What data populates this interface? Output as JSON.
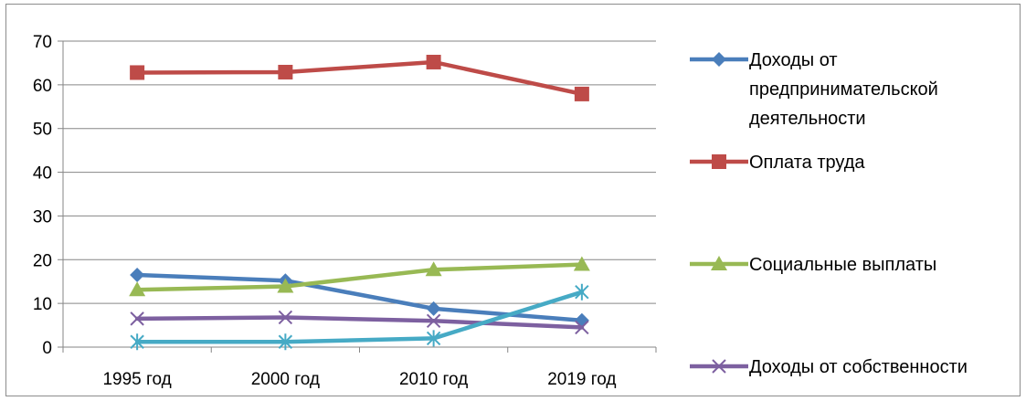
{
  "chart_data": {
    "type": "line",
    "categories": [
      "1995 год",
      "2000 год",
      "2010 год",
      "2019 год"
    ],
    "ylim": [
      0,
      70
    ],
    "yticks": [
      "0",
      "10",
      "20",
      "30",
      "40",
      "50",
      "60",
      "70"
    ],
    "grid": true,
    "legend_position": "right",
    "series": [
      {
        "name": "Доходы от предпринимательской деятельности",
        "name_lines": [
          "Доходы от",
          "предпринимательской",
          "деятельности"
        ],
        "values": [
          16.5,
          15.2,
          8.8,
          6.1
        ],
        "color": "#4a7ebb",
        "marker": "diamond"
      },
      {
        "name": "Оплата труда",
        "name_lines": [
          "Оплата труда"
        ],
        "values": [
          62.8,
          62.9,
          65.2,
          57.9
        ],
        "color": "#be4b48",
        "marker": "square"
      },
      {
        "name": "Социальные выплаты",
        "name_lines": [
          "Социальные выплаты"
        ],
        "values": [
          13.1,
          13.9,
          17.7,
          18.9
        ],
        "color": "#98b954",
        "marker": "triangle"
      },
      {
        "name": "Доходы от собственности",
        "name_lines": [
          "Доходы от собственности"
        ],
        "values": [
          6.5,
          6.8,
          6.0,
          4.5
        ],
        "color": "#7d60a0",
        "marker": "x"
      },
      {
        "name": "",
        "name_lines": [],
        "values": [
          1.2,
          1.2,
          2.0,
          12.6
        ],
        "color": "#46aac5",
        "marker": "star"
      }
    ]
  }
}
